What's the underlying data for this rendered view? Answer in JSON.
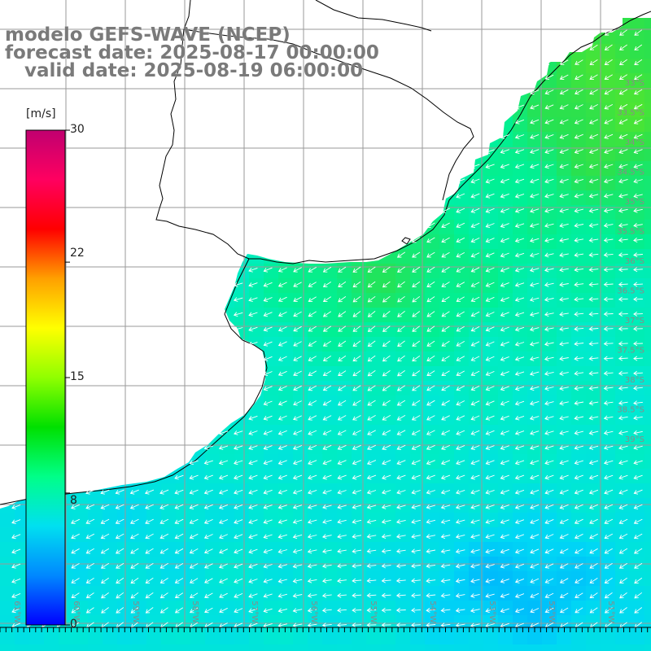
{
  "header": {
    "line1": "modelo GEFS-WAVE (NCEP)",
    "line2": "forecast date: 2025-08-17 00:00:00",
    "line3": "   valid date: 2025-08-19 06:00:00"
  },
  "colorbar": {
    "unit": "[m/s]",
    "min": 0,
    "max": 30,
    "ticks": [
      "30",
      "22",
      "15",
      "8",
      "0"
    ],
    "tick_values": [
      30,
      22,
      15,
      8,
      0
    ],
    "colors": [
      "#0000ff",
      "#0088ff",
      "#00e0f0",
      "#00ff88",
      "#00e000",
      "#90ff00",
      "#ffff00",
      "#ffa000",
      "#ff0000",
      "#ff0060",
      "#c00070"
    ]
  },
  "map": {
    "bottom_labels": [
      "61°W",
      "60°W",
      "59°W",
      "58°W",
      "57°W",
      "56°W",
      "55°W",
      "54°W",
      "53°W",
      "52°W",
      "51°W"
    ],
    "right_labels": [
      "33°S",
      "33.5°S",
      "34°S",
      "34.5°S",
      "35°S",
      "35.5°S",
      "36°S",
      "36.5°S",
      "37°S",
      "37.5°S",
      "38°S",
      "38.5°S",
      "39°S"
    ],
    "land_color": "#ffffff",
    "grid_color": "#9a9a9a",
    "coast_color": "#000000",
    "arrow_color": "#ffffff"
  }
}
